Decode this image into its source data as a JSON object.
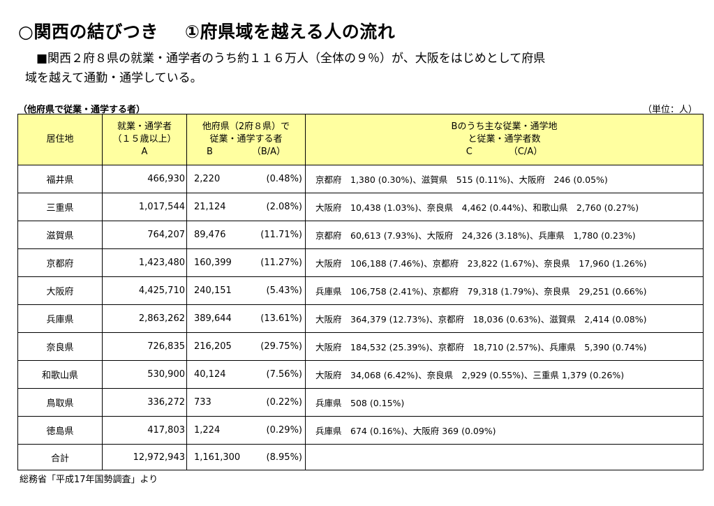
{
  "header": {
    "title_main": "○関西の結びつき",
    "title_sub": "①府県域を越える人の流れ",
    "lead_line1": "■関西２府８県の就業・通学者のうち約１１６万人（全体の９％）が、大阪をはじめとして府県",
    "lead_line2": "域を越えて通勤・通学している。"
  },
  "table": {
    "caption": "（他府県で従業・通学する者）",
    "unit": "（単位：人）",
    "headers": {
      "residence": "居住地",
      "a_line1": "就業・通学者",
      "a_line2": "（１５歳以上）",
      "a_line3": "A",
      "b_line1": "他府県（2府８県）で",
      "b_line2": "従業・通学する者",
      "b_line3_left": "B",
      "b_line3_right": "（B/A）",
      "c_line1": "Bのうち主な従業・通学地",
      "c_line2": "と従業・通学者数",
      "c_line3_left": "C",
      "c_line3_right": "（C/A）"
    },
    "rows": [
      {
        "residence": "福井県",
        "a": "466,930",
        "b": "2,220",
        "ratio": "(0.48%)",
        "detail": "京都府　1,380 (0.30%)、滋賀県　515 (0.11%)、大阪府　246 (0.05%)"
      },
      {
        "residence": "三重県",
        "a": "1,017,544",
        "b": "21,124",
        "ratio": "(2.08%)",
        "detail": "大阪府　10,438 (1.03%)、奈良県　4,462 (0.44%)、和歌山県　2,760 (0.27%)"
      },
      {
        "residence": "滋賀県",
        "a": "764,207",
        "b": "89,476",
        "ratio": "(11.71%)",
        "detail": "京都府　60,613 (7.93%)、大阪府　24,326 (3.18%)、兵庫県　1,780 (0.23%)"
      },
      {
        "residence": "京都府",
        "a": "1,423,480",
        "b": "160,399",
        "ratio": "(11.27%)",
        "detail": "大阪府　106,188 (7.46%)、京都府　23,822 (1.67%)、奈良県　17,960 (1.26%)"
      },
      {
        "residence": "大阪府",
        "a": "4,425,710",
        "b": "240,151",
        "ratio": "(5.43%)",
        "detail": "兵庫県　106,758 (2.41%)、京都府　79,318 (1.79%)、奈良県　29,251 (0.66%)"
      },
      {
        "residence": "兵庫県",
        "a": "2,863,262",
        "b": "389,644",
        "ratio": "(13.61%)",
        "detail": "大阪府　364,379 (12.73%)、京都府　18,036 (0.63%)、滋賀県　2,414 (0.08%)"
      },
      {
        "residence": "奈良県",
        "a": "726,835",
        "b": "216,205",
        "ratio": "(29.75%)",
        "detail": "大阪府　184,532 (25.39%)、京都府　18,710 (2.57%)、兵庫県　5,390 (0.74%)"
      },
      {
        "residence": "和歌山県",
        "a": "530,900",
        "b": "40,124",
        "ratio": "(7.56%)",
        "detail": "大阪府　34,068 (6.42%)、奈良県　2,929 (0.55%)、三重県 1,379 (0.26%)"
      },
      {
        "residence": "鳥取県",
        "a": "336,272",
        "b": "733",
        "ratio": "(0.22%)",
        "detail": "兵庫県　508 (0.15%)"
      },
      {
        "residence": "徳島県",
        "a": "417,803",
        "b": "1,224",
        "ratio": "(0.29%)",
        "detail": "兵庫県　674 (0.16%)、大阪府 369 (0.09%)"
      }
    ],
    "total": {
      "residence": "合計",
      "a": "12,972,943",
      "b": "1,161,300",
      "ratio": "(8.95%)",
      "detail": ""
    }
  },
  "source": "総務省「平成17年国勢調査」より",
  "colors": {
    "header_bg": "#ffffa0"
  }
}
